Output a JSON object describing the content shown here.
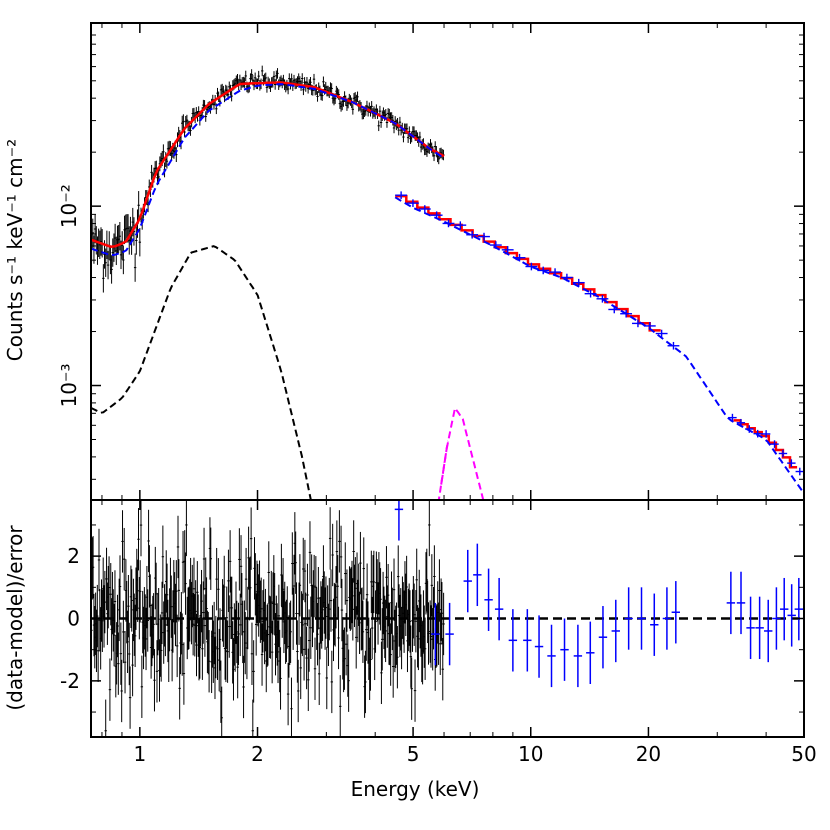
{
  "chart_data": [
    {
      "panel": "spectrum",
      "type": "line",
      "xscale": "log",
      "yscale": "log",
      "xlim": [
        0.75,
        50
      ],
      "ylim": [
        0.00023,
        0.105
      ],
      "xlabel": "Energy (keV)",
      "ylabel": "Counts s⁻¹ keV⁻¹ cm⁻²",
      "y_tick_labels": [
        {
          "value": 0.01,
          "label": "10⁻²"
        },
        {
          "value": 0.001,
          "label": "10⁻³"
        }
      ],
      "series": [
        {
          "name": "low-energy data",
          "color": "#000000",
          "style": "errorbars",
          "segments": [
            [
              0.75,
              6.0
            ]
          ],
          "anchors": [
            [
              0.75,
              0.0062
            ],
            [
              0.85,
              0.0057
            ],
            [
              0.92,
              0.0062
            ],
            [
              1.0,
              0.0088
            ],
            [
              1.1,
              0.0155
            ],
            [
              1.3,
              0.027
            ],
            [
              1.5,
              0.037
            ],
            [
              1.8,
              0.048
            ],
            [
              2.0,
              0.05
            ],
            [
              2.3,
              0.049
            ],
            [
              2.8,
              0.046
            ],
            [
              3.5,
              0.038
            ],
            [
              4.5,
              0.029
            ],
            [
              5.5,
              0.021
            ],
            [
              6.0,
              0.019
            ]
          ]
        },
        {
          "name": "high-energy data",
          "color": "#0000ff",
          "style": "errorbars",
          "segments": [
            [
              4.5,
              24
            ],
            [
              32,
              50
            ]
          ],
          "anchors": [
            [
              4.5,
              0.0122
            ],
            [
              5.0,
              0.0105
            ],
            [
              6,
              0.0085
            ],
            [
              8,
              0.0062
            ],
            [
              10,
              0.0048
            ],
            [
              12,
              0.0041
            ],
            [
              15,
              0.0032
            ],
            [
              20,
              0.00215
            ],
            [
              24,
              0.00165
            ],
            [
              32,
              0.00068
            ],
            [
              40,
              0.00053
            ],
            [
              45,
              0.0004
            ],
            [
              50,
              0.0003
            ]
          ]
        },
        {
          "name": "total model (red)",
          "color": "#ff0000",
          "style": "solid",
          "segments": [
            [
              0.75,
              6.0
            ],
            [
              4.5,
              21.5
            ],
            [
              33,
              48
            ]
          ],
          "anchors": [
            [
              0.75,
              0.0065
            ],
            [
              0.85,
              0.0059
            ],
            [
              0.92,
              0.0063
            ],
            [
              1.0,
              0.0085
            ],
            [
              1.1,
              0.0155
            ],
            [
              1.3,
              0.027
            ],
            [
              1.5,
              0.037
            ],
            [
              1.8,
              0.048
            ],
            [
              2.0,
              0.0485
            ],
            [
              2.3,
              0.049
            ],
            [
              2.8,
              0.046
            ],
            [
              3.5,
              0.038
            ],
            [
              4.5,
              0.029
            ],
            [
              5.5,
              0.021
            ],
            [
              6.0,
              0.019
            ],
            [
              4.5,
              0.0118
            ],
            [
              5.0,
              0.0105
            ],
            [
              6,
              0.0085
            ],
            [
              8,
              0.0062
            ],
            [
              10,
              0.0048
            ],
            [
              12,
              0.0041
            ],
            [
              15,
              0.0032
            ],
            [
              20,
              0.00215
            ],
            [
              24,
              0.00165
            ],
            [
              32,
              0.00068
            ],
            [
              40,
              0.00052
            ],
            [
              45,
              0.0004
            ],
            [
              50,
              0.00029
            ]
          ]
        },
        {
          "name": "continuum model (blue dashed)",
          "color": "#0000ff",
          "style": "dashed",
          "segments": [
            [
              0.75,
              6.0
            ],
            [
              4.5,
              50
            ]
          ],
          "anchors": [
            [
              0.75,
              0.0058
            ],
            [
              0.85,
              0.0053
            ],
            [
              0.92,
              0.0056
            ],
            [
              1.0,
              0.0075
            ],
            [
              1.1,
              0.013
            ],
            [
              1.3,
              0.024
            ],
            [
              1.5,
              0.034
            ],
            [
              1.8,
              0.044
            ],
            [
              2.0,
              0.047
            ],
            [
              2.3,
              0.048
            ],
            [
              2.8,
              0.045
            ],
            [
              3.5,
              0.038
            ],
            [
              4.5,
              0.029
            ],
            [
              5.5,
              0.021
            ],
            [
              6.0,
              0.0185
            ],
            [
              4.5,
              0.0112
            ],
            [
              5.0,
              0.0098
            ],
            [
              6,
              0.0082
            ],
            [
              8,
              0.006
            ],
            [
              10,
              0.0046
            ],
            [
              12,
              0.004
            ],
            [
              15,
              0.0031
            ],
            [
              20,
              0.0021
            ],
            [
              25,
              0.00145
            ],
            [
              32,
              0.00065
            ],
            [
              40,
              0.0005
            ],
            [
              50,
              0.00025
            ]
          ]
        },
        {
          "name": "soft component (black dashed)",
          "color": "#000000",
          "style": "dashed",
          "segments": [
            [
              0.75,
              2.75
            ]
          ],
          "anchors": [
            [
              0.75,
              0.00075
            ],
            [
              0.8,
              0.0007
            ],
            [
              0.9,
              0.00085
            ],
            [
              1.0,
              0.0012
            ],
            [
              1.2,
              0.0035
            ],
            [
              1.35,
              0.0055
            ],
            [
              1.55,
              0.006
            ],
            [
              1.75,
              0.005
            ],
            [
              2.0,
              0.0032
            ],
            [
              2.3,
              0.0012
            ],
            [
              2.6,
              0.0004
            ],
            [
              2.75,
              0.00022
            ]
          ]
        },
        {
          "name": "Fe line (magenta dashed)",
          "color": "#ff00ff",
          "style": "dashed",
          "segments": [
            [
              5.8,
              7.6
            ],
            [
              5.9,
              6.15
            ]
          ],
          "anchors": [
            [
              5.8,
              0.00022
            ],
            [
              6.1,
              0.00045
            ],
            [
              6.4,
              0.00075
            ],
            [
              6.7,
              0.00065
            ],
            [
              7.2,
              0.00035
            ],
            [
              7.6,
              0.00022
            ],
            [
              5.9,
              0.00022
            ],
            [
              6.0,
              0.0003
            ],
            [
              6.15,
              0.00035
            ]
          ]
        }
      ]
    },
    {
      "panel": "residuals",
      "type": "scatter",
      "xscale": "log",
      "xlim": [
        0.75,
        50
      ],
      "ylim": [
        -3.8,
        3.8
      ],
      "xlabel": "Energy (keV)",
      "ylabel": "(data-model)/error",
      "x_tick_labels": [
        "1",
        "2",
        "5",
        "10",
        "20",
        "50"
      ],
      "x_ticks": [
        1,
        2,
        5,
        10,
        20,
        50
      ],
      "y_tick_labels": [
        "2",
        "0",
        "-2"
      ],
      "y_ticks": [
        2,
        0,
        -2
      ],
      "zero_line": 0,
      "series": [
        {
          "name": "low-energy residuals",
          "color": "#000000",
          "range": [
            0.75,
            6.0
          ],
          "amplitude": 1.1
        },
        {
          "name": "high-energy residuals",
          "color": "#0000ff",
          "x": [
            4.6,
            5.7,
            6.2,
            6.9,
            7.3,
            7.8,
            8.3,
            9.0,
            9.8,
            10.5,
            11.3,
            12.2,
            13.2,
            14.2,
            15.3,
            16.5,
            17.8,
            19.2,
            20.7,
            22.3,
            23.5,
            32.5,
            34.5,
            36.5,
            38.5,
            40.5,
            42.5,
            44.5,
            46.5,
            48.5
          ],
          "values": [
            3.5,
            -0.5,
            -0.5,
            1.2,
            1.4,
            0.6,
            0.3,
            -0.7,
            -0.7,
            -0.9,
            -1.2,
            -1.0,
            -1.2,
            -1.1,
            -0.6,
            -0.4,
            0.0,
            0.0,
            -0.2,
            0.0,
            0.2,
            0.5,
            0.5,
            -0.3,
            -0.3,
            -0.4,
            0.0,
            0.3,
            0.1,
            0.3
          ]
        }
      ]
    }
  ]
}
